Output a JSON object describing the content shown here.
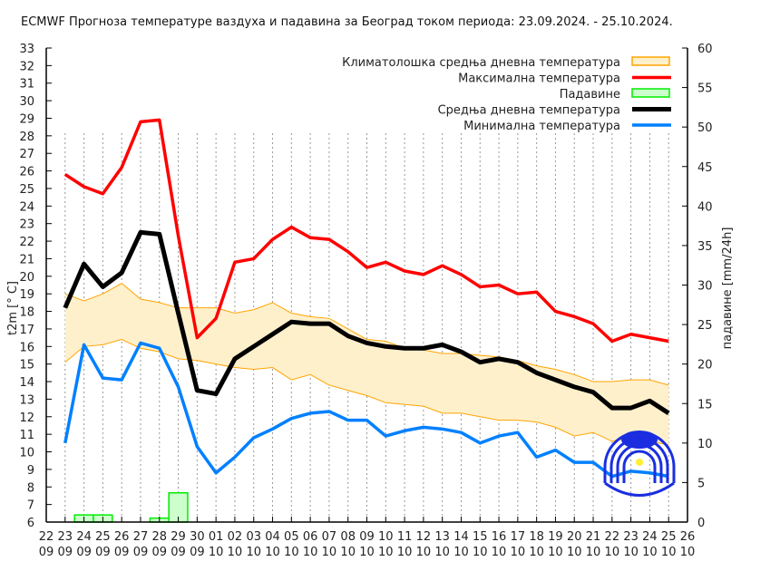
{
  "chart_data": {
    "type": "line",
    "title": "ECMWF Прогноза температуре ваздуха и падавина за Београд током периода: 23.09.2024. - 25.10.2024.",
    "ylabel": "t2m [° C]",
    "y2label": "падавине [mm/24h]",
    "ylim": [
      6,
      33
    ],
    "y2lim": [
      0,
      60
    ],
    "y2ticks": [
      0,
      5,
      10,
      15,
      20,
      25,
      30,
      35,
      40,
      45,
      50,
      55,
      60
    ],
    "grid": "vertical dotted",
    "legend_position": "top-right",
    "x_ticks": [
      [
        "22",
        "09"
      ],
      [
        "23",
        "09"
      ],
      [
        "24",
        "09"
      ],
      [
        "25",
        "09"
      ],
      [
        "26",
        "09"
      ],
      [
        "27",
        "09"
      ],
      [
        "28",
        "09"
      ],
      [
        "29",
        "09"
      ],
      [
        "30",
        "09"
      ],
      [
        "01",
        "10"
      ],
      [
        "02",
        "10"
      ],
      [
        "03",
        "10"
      ],
      [
        "04",
        "10"
      ],
      [
        "05",
        "10"
      ],
      [
        "06",
        "10"
      ],
      [
        "07",
        "10"
      ],
      [
        "08",
        "10"
      ],
      [
        "09",
        "10"
      ],
      [
        "10",
        "10"
      ],
      [
        "11",
        "10"
      ],
      [
        "12",
        "10"
      ],
      [
        "13",
        "10"
      ],
      [
        "14",
        "10"
      ],
      [
        "15",
        "10"
      ],
      [
        "16",
        "10"
      ],
      [
        "17",
        "10"
      ],
      [
        "18",
        "10"
      ],
      [
        "19",
        "10"
      ],
      [
        "20",
        "10"
      ],
      [
        "21",
        "10"
      ],
      [
        "22",
        "10"
      ],
      [
        "23",
        "10"
      ],
      [
        "24",
        "10"
      ],
      [
        "25",
        "10"
      ],
      [
        "26",
        "10"
      ]
    ],
    "x_dates": [
      "23.09",
      "24.09",
      "25.09",
      "26.09",
      "27.09",
      "28.09",
      "29.09",
      "30.09",
      "01.10",
      "02.10",
      "03.10",
      "04.10",
      "05.10",
      "06.10",
      "07.10",
      "08.10",
      "09.10",
      "10.10",
      "11.10",
      "12.10",
      "13.10",
      "14.10",
      "15.10",
      "16.10",
      "17.10",
      "18.10",
      "19.10",
      "20.10",
      "21.10",
      "22.10",
      "23.10",
      "24.10",
      "25.10"
    ],
    "series": [
      {
        "name": "Климатолошка средња дневна температура",
        "kind": "band",
        "color": "#ffa500",
        "fill": "#fff0cc",
        "upper": [
          19.0,
          18.6,
          19.0,
          19.6,
          18.7,
          18.5,
          18.2,
          18.2,
          18.2,
          17.9,
          18.1,
          18.5,
          17.9,
          17.7,
          17.6,
          17.0,
          16.4,
          16.3,
          15.9,
          15.8,
          15.6,
          15.6,
          15.5,
          15.4,
          15.2,
          14.9,
          14.7,
          14.4,
          14.0,
          14.0,
          14.1,
          14.1,
          13.8
        ],
        "lower": [
          15.1,
          16.0,
          16.1,
          16.4,
          15.9,
          15.7,
          15.3,
          15.2,
          15.0,
          14.8,
          14.7,
          14.8,
          14.1,
          14.4,
          13.8,
          13.5,
          13.2,
          12.8,
          12.7,
          12.6,
          12.2,
          12.2,
          12.0,
          11.8,
          11.8,
          11.7,
          11.4,
          10.9,
          11.1,
          10.6,
          10.8,
          10.6,
          10.4
        ]
      },
      {
        "name": "Максимална температура",
        "kind": "line",
        "color": "#ff0000",
        "values": [
          25.8,
          25.1,
          24.7,
          26.2,
          28.8,
          28.9,
          22.3,
          16.5,
          17.6,
          20.8,
          21.0,
          22.1,
          22.8,
          22.2,
          22.1,
          21.4,
          20.5,
          20.8,
          20.3,
          20.1,
          20.6,
          20.1,
          19.4,
          19.5,
          19.0,
          19.1,
          18.0,
          17.7,
          17.3,
          16.3,
          16.7,
          16.5,
          16.3
        ]
      },
      {
        "name": "Падавине",
        "kind": "bar",
        "axis": "right",
        "color": "#00ee00",
        "fill": "#ccffcc",
        "values": [
          0,
          0.9,
          0.9,
          0,
          0,
          0.5,
          3.7,
          0,
          0,
          0,
          0,
          0,
          0,
          0,
          0,
          0,
          0,
          0,
          0,
          0,
          0,
          0,
          0,
          0,
          0,
          0,
          0,
          0,
          0,
          0,
          0,
          0,
          0
        ]
      },
      {
        "name": "Средња дневна температура",
        "kind": "line",
        "color": "#000000",
        "values": [
          18.2,
          20.7,
          19.4,
          20.2,
          22.5,
          22.4,
          17.9,
          13.5,
          13.3,
          15.3,
          16.0,
          16.7,
          17.4,
          17.3,
          17.3,
          16.6,
          16.2,
          16.0,
          15.9,
          15.9,
          16.1,
          15.7,
          15.1,
          15.3,
          15.1,
          14.5,
          14.1,
          13.7,
          13.4,
          12.5,
          12.5,
          12.9,
          12.2
        ]
      },
      {
        "name": "Минимална температура",
        "kind": "line",
        "color": "#0080ff",
        "values": [
          10.5,
          16.1,
          14.2,
          14.1,
          16.2,
          15.9,
          13.7,
          10.3,
          8.8,
          9.7,
          10.8,
          11.3,
          11.9,
          12.2,
          12.3,
          11.8,
          11.8,
          10.9,
          11.2,
          11.4,
          11.3,
          11.1,
          10.5,
          10.9,
          11.1,
          9.7,
          10.1,
          9.4,
          9.4,
          8.6,
          8.9,
          8.8,
          8.6
        ]
      }
    ]
  }
}
